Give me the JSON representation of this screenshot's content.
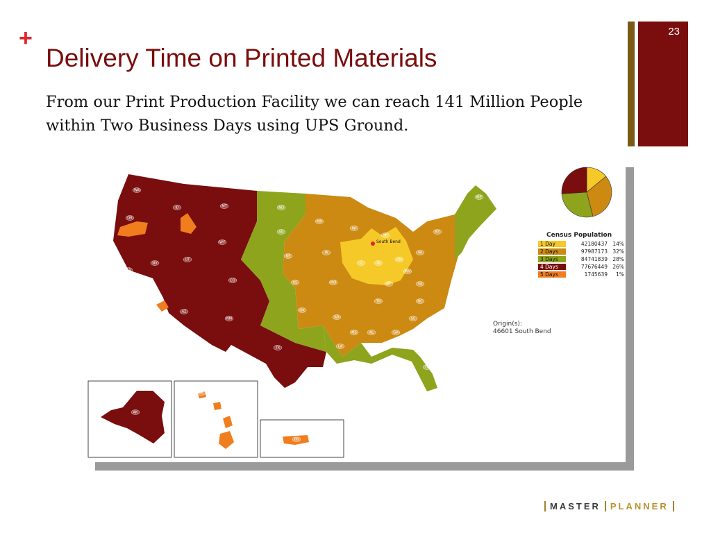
{
  "slide": {
    "plus_symbol": "+",
    "title": "Delivery Time on Printed Materials",
    "subtitle": "From our Print Production Facility we can reach 141 Million People within Two Business Days using UPS Ground.",
    "slide_number": "23"
  },
  "map": {
    "origin_marker_label": "South Bend",
    "origin_label": "Origin(s):",
    "origin_value": "46601 South Bend",
    "legend_title": "Census Population",
    "legend": [
      {
        "label": "1 Day",
        "population": "42180437",
        "percent": "14%",
        "color": "#f5c928"
      },
      {
        "label": "2 Days",
        "population": "97987173",
        "percent": "32%",
        "color": "#cc8a12"
      },
      {
        "label": "3 Days",
        "population": "84741839",
        "percent": "28%",
        "color": "#8ea41c"
      },
      {
        "label": "4 Days",
        "population": "77676449",
        "percent": "26%",
        "color": "#7a0d0d"
      },
      {
        "label": "5 Days",
        "population": "1745639",
        "percent": "1%",
        "color": "#f07d1e"
      }
    ],
    "pie_values": [
      14,
      32,
      28,
      26
    ],
    "state_labels": [
      "WA",
      "OR",
      "CA",
      "ID",
      "NV",
      "UT",
      "AZ",
      "MT",
      "WY",
      "CO",
      "NM",
      "TX",
      "ND",
      "SD",
      "NE",
      "KS",
      "OK",
      "MN",
      "IA",
      "MO",
      "AR",
      "LA",
      "WI",
      "IL",
      "IN",
      "OH",
      "MI",
      "KY",
      "TN",
      "MS",
      "AL",
      "GA",
      "FL",
      "SC",
      "NC",
      "VA",
      "WV",
      "PA",
      "NY",
      "ME",
      "AK",
      "HI",
      "PR"
    ]
  },
  "logo": {
    "left": "MASTER",
    "right": "PLANNER"
  }
}
